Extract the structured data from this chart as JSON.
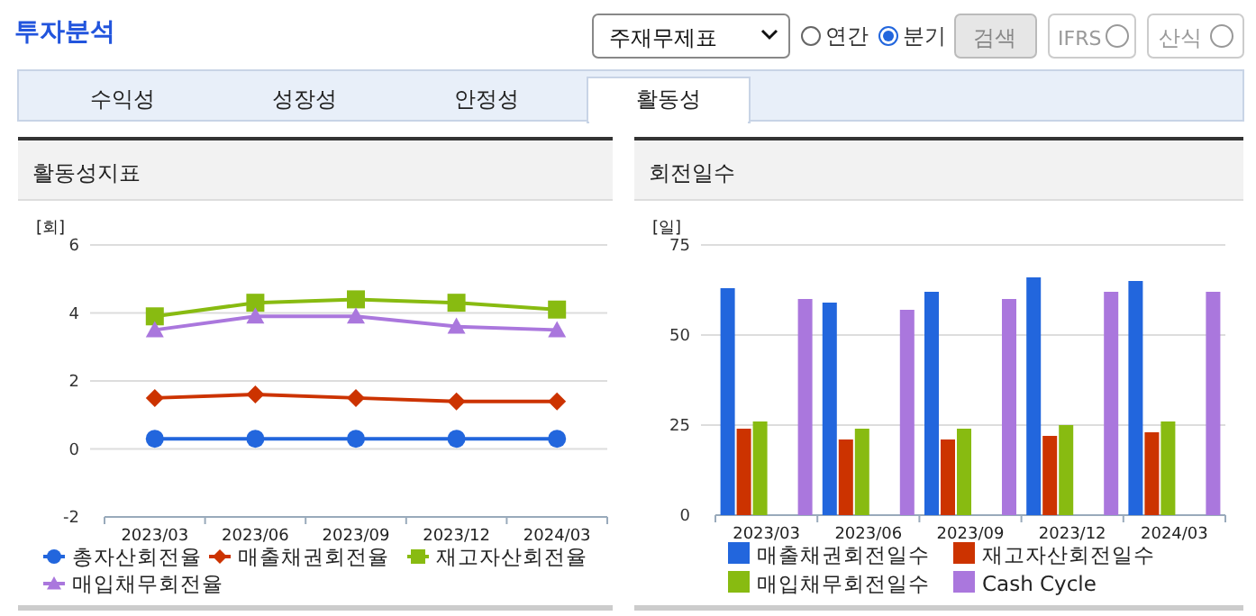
{
  "chart_data": [
    {
      "type": "line",
      "title": "활동성지표",
      "ylabel": "[회]",
      "categories": [
        "2023/03",
        "2023/06",
        "2023/09",
        "2023/12",
        "2024/03"
      ],
      "ylim": [
        -2,
        6
      ],
      "yticks": [
        -2,
        0,
        2,
        4,
        6
      ],
      "grid": "y",
      "legend": "bottom",
      "annotations": [
        "투자분석",
        "주재무제표",
        "연간",
        "분기",
        "검색",
        "IFRS",
        "산식",
        "수익성",
        "성장성",
        "안정성",
        "활동성"
      ],
      "series": [
        {
          "name": "총자산회전율",
          "color": "#2266dd",
          "marker": "circle",
          "values": [
            0.3,
            0.3,
            0.3,
            0.3,
            0.3
          ]
        },
        {
          "name": "매출채권회전율",
          "color": "#cc3300",
          "marker": "diamond",
          "values": [
            1.5,
            1.6,
            1.5,
            1.4,
            1.4
          ]
        },
        {
          "name": "재고자산회전율",
          "color": "#88bb11",
          "marker": "square",
          "values": [
            3.9,
            4.3,
            4.4,
            4.3,
            4.1
          ]
        },
        {
          "name": "매입채무회전율",
          "color": "#aa77dd",
          "marker": "triangle",
          "values": [
            3.5,
            3.9,
            3.9,
            3.6,
            3.5
          ]
        }
      ]
    },
    {
      "type": "bar",
      "title": "회전일수",
      "ylabel": "[일]",
      "categories": [
        "2023/03",
        "2023/06",
        "2023/09",
        "2023/12",
        "2024/03"
      ],
      "ylim": [
        0,
        75
      ],
      "yticks": [
        0,
        25,
        50,
        75
      ],
      "grid": "y",
      "legend": "bottom",
      "series": [
        {
          "name": "매출채권회전일수",
          "color": "#2266dd",
          "values": [
            63,
            59,
            62,
            66,
            65
          ]
        },
        {
          "name": "재고자산회전일수",
          "color": "#cc3300",
          "values": [
            24,
            21,
            21,
            22,
            23
          ]
        },
        {
          "name": "매입채무회전일수",
          "color": "#88bb11",
          "values": [
            26,
            24,
            24,
            25,
            26
          ]
        },
        {
          "name": "Cash Cycle",
          "color": "#aa77dd",
          "values": [
            60,
            57,
            60,
            62,
            62
          ]
        }
      ]
    }
  ]
}
